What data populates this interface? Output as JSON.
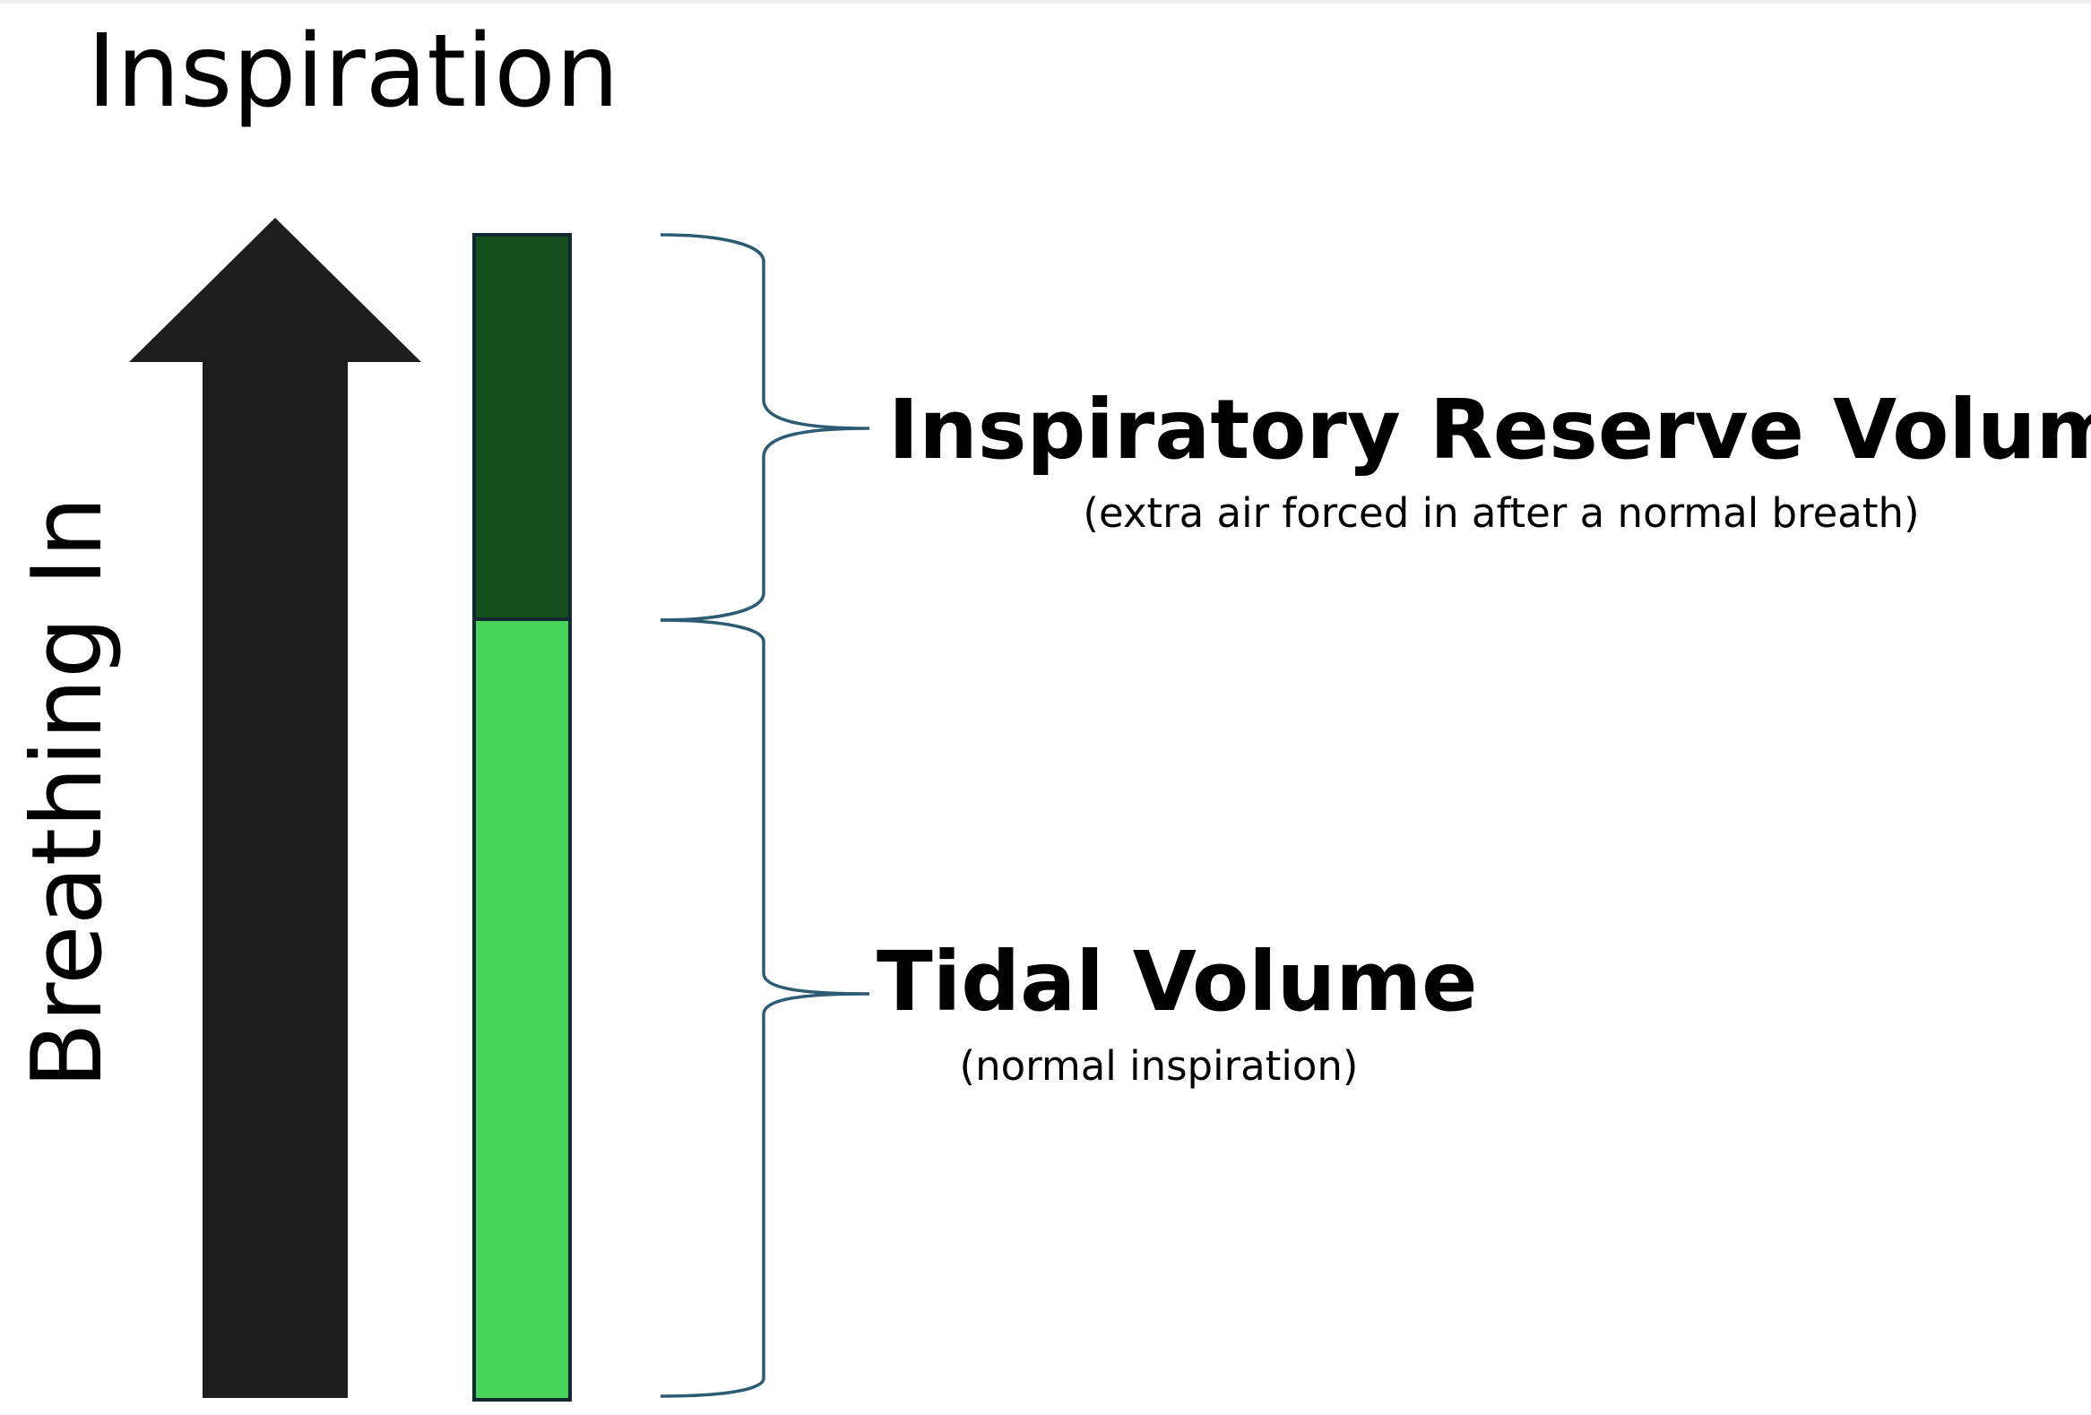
{
  "title": "Inspiration",
  "arrow_label": "Breathing In",
  "colors": {
    "arrow": "#1e1e1e",
    "inspiratory_reserve": "#154d1c",
    "tidal": "#48d45a",
    "bar_border": "#0e2a30",
    "brace": "#2c5b73"
  },
  "segments": [
    {
      "name": "Inspiratory Reserve Volume",
      "note": "(extra air forced in after a normal breath)",
      "fraction": 0.33
    },
    {
      "name": "Tidal Volume",
      "note": "(normal inspiration)",
      "fraction": 0.67
    }
  ]
}
